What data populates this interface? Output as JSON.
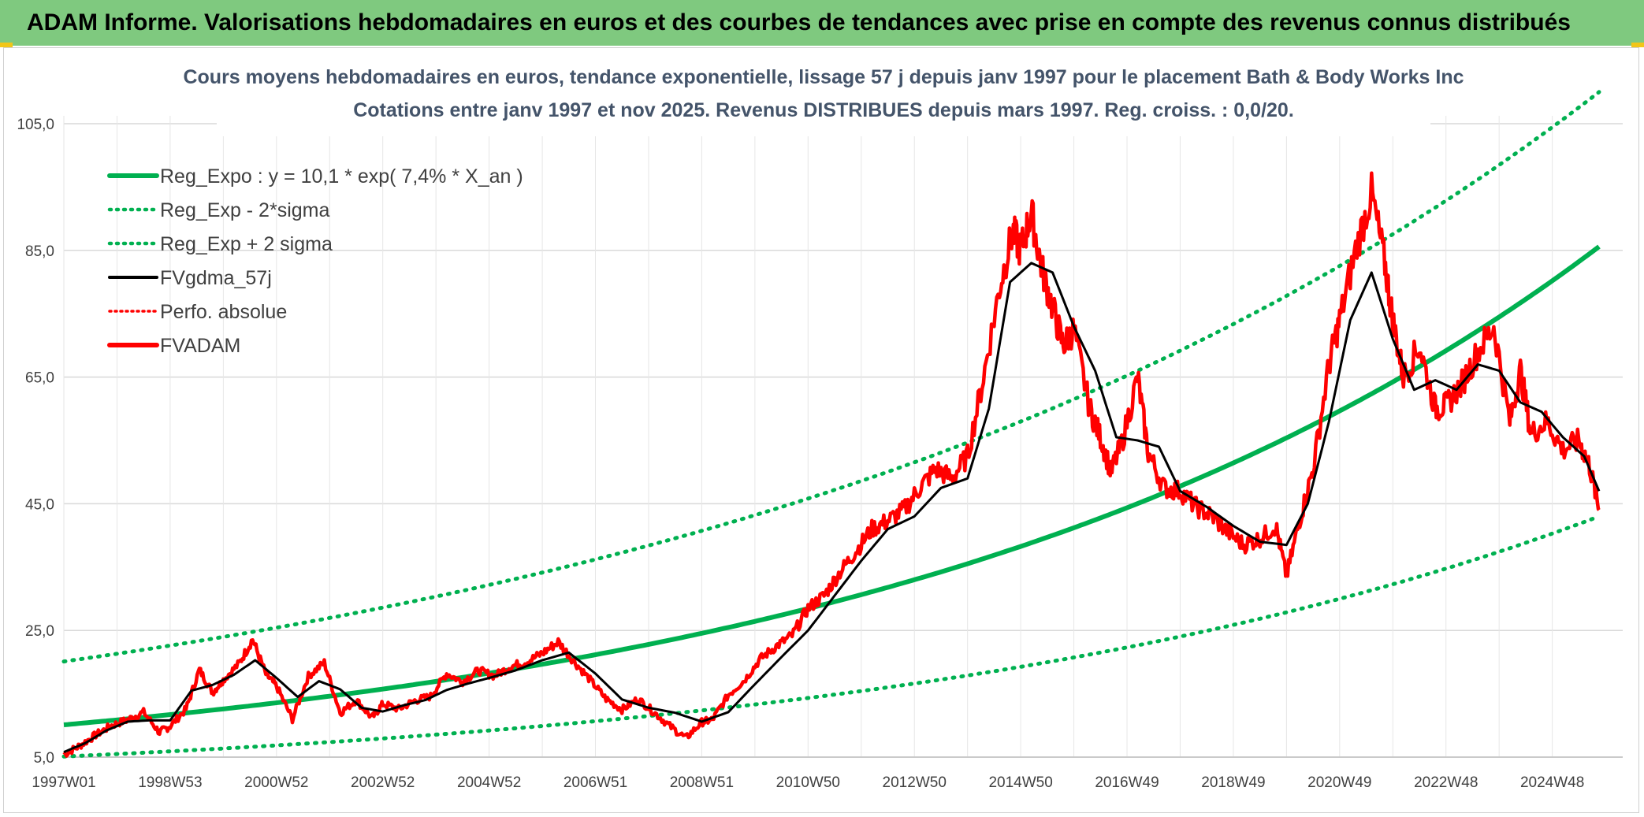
{
  "banner": {
    "title": "ADAM Informe. Valorisations hebdomadaires en euros et des courbes de tendances avec prise en compte des revenus connus distribués"
  },
  "colors": {
    "banner_bg": "#7fc97f",
    "reg_green": "#00b050",
    "fv_red": "#ff0000",
    "gdma_black": "#000000",
    "title_slate": "#44546a",
    "grid": "#d9d9d9"
  },
  "chart_data": {
    "type": "line",
    "title_lines": [
      "Cours moyens hebdomadaires en euros, tendance exponentielle, lissage 57 j depuis janv 1997 pour le placement Bath & Body Works Inc",
      "Cotations entre janv 1997 et nov 2025. Revenus DISTRIBUES depuis mars 1997. Reg. croiss. : 0,0/20."
    ],
    "xlabel": "",
    "ylabel": "",
    "ylim": [
      5,
      105
    ],
    "xlim": [
      1997.0,
      2025.88
    ],
    "y_ticks": [
      "5,0",
      "25,0",
      "45,0",
      "65,0",
      "85,0",
      "105,0"
    ],
    "y_tick_values": [
      5,
      25,
      45,
      65,
      85,
      105
    ],
    "x_ticks": [
      "1997W01",
      "1998W53",
      "2000W52",
      "2002W52",
      "2004W52",
      "2006W51",
      "2008W51",
      "2010W50",
      "2012W50",
      "2014W50",
      "2016W49",
      "2018W49",
      "2020W49",
      "2022W48",
      "2024W48"
    ],
    "x_tick_values": [
      1997,
      1999,
      2001,
      2003,
      2005,
      2007,
      2009,
      2011,
      2013,
      2015,
      2017,
      2019,
      2021,
      2023,
      2025
    ],
    "legend_position": "top-left",
    "legend": [
      {
        "key": "reg",
        "label": "Reg_Expo : y = 10,1 * exp( 7,4% *  X_an )",
        "style": "solid-thick-green"
      },
      {
        "key": "low",
        "label": "Reg_Exp - 2*sigma",
        "style": "dotted-green"
      },
      {
        "key": "high",
        "label": "Reg_Exp + 2 sigma",
        "style": "dotted-green"
      },
      {
        "key": "gdma",
        "label": "FVgdma_57j",
        "style": "solid-black"
      },
      {
        "key": "perf",
        "label": "Perfo. absolue",
        "style": "dotted-red"
      },
      {
        "key": "fv",
        "label": "FVADAM",
        "style": "solid-thick-red"
      }
    ],
    "regression": {
      "formula": "y = 10.1 * exp(0.074 * X_an)",
      "a": 10.1,
      "b": 0.074,
      "upper_start": 20.1,
      "lower_start": 5.1,
      "upper_end": 110.0,
      "lower_end": 43.0
    },
    "series": [
      {
        "name": "FVADAM",
        "x": [
          1997.0,
          1997.3,
          1997.6,
          1997.9,
          1998.2,
          1998.5,
          1998.8,
          1999.0,
          1999.3,
          1999.55,
          1999.8,
          2000.0,
          2000.3,
          2000.55,
          2000.8,
          2001.0,
          2001.3,
          2001.6,
          2001.9,
          2002.2,
          2002.5,
          2002.8,
          2003.0,
          2003.3,
          2003.6,
          2003.9,
          2004.2,
          2004.5,
          2004.8,
          2005.1,
          2005.4,
          2005.7,
          2006.0,
          2006.3,
          2006.6,
          2006.9,
          2007.2,
          2007.5,
          2007.8,
          2008.1,
          2008.4,
          2008.7,
          2009.0,
          2009.2,
          2009.5,
          2009.8,
          2010.1,
          2010.4,
          2010.7,
          2011.0,
          2011.3,
          2011.6,
          2011.9,
          2012.2,
          2012.5,
          2012.8,
          2013.1,
          2013.4,
          2013.7,
          2014.0,
          2014.3,
          2014.6,
          2014.85,
          2015.0,
          2015.2,
          2015.4,
          2015.6,
          2015.8,
          2016.0,
          2016.3,
          2016.5,
          2016.7,
          2016.9,
          2017.2,
          2017.4,
          2017.7,
          2018.0,
          2018.3,
          2018.6,
          2018.9,
          2019.2,
          2019.5,
          2019.8,
          2020.0,
          2020.25,
          2020.5,
          2020.8,
          2021.0,
          2021.3,
          2021.6,
          2021.85,
          2022.0,
          2022.2,
          2022.5,
          2022.8,
          2023.0,
          2023.3,
          2023.6,
          2023.9,
          2024.2,
          2024.4,
          2024.6,
          2024.9,
          2025.2,
          2025.5,
          2025.7,
          2025.88
        ],
        "values": [
          5.4,
          6.8,
          8.5,
          10.0,
          10.9,
          12.1,
          8.9,
          9.9,
          12.6,
          18.8,
          15.2,
          17.2,
          19.8,
          23.6,
          18.1,
          16.2,
          11.0,
          17.8,
          19.9,
          12.0,
          14.0,
          11.2,
          13.4,
          12.6,
          13.9,
          14.6,
          18.2,
          16.9,
          18.7,
          17.8,
          19.3,
          20.0,
          21.4,
          23.2,
          20.1,
          17.2,
          14.2,
          12.5,
          14.2,
          12.1,
          9.9,
          8.0,
          10.5,
          10.9,
          14.8,
          17.1,
          20.5,
          22.5,
          24.2,
          28.5,
          30.5,
          34.2,
          37.5,
          41.0,
          42.3,
          44.0,
          47.5,
          50.5,
          49.0,
          52.5,
          65.0,
          79.0,
          88.0,
          85.0,
          91.0,
          82.0,
          76.0,
          70.0,
          72.5,
          60.0,
          55.5,
          50.0,
          54.5,
          65.0,
          53.0,
          47.5,
          47.0,
          44.5,
          43.0,
          40.5,
          38.5,
          39.5,
          41.5,
          33.5,
          42.5,
          50.5,
          67.0,
          74.0,
          85.0,
          94.0,
          83.0,
          74.0,
          65.0,
          70.0,
          60.0,
          60.5,
          64.0,
          69.0,
          73.0,
          58.0,
          66.0,
          56.0,
          58.0,
          53.5,
          55.0,
          51.0,
          44.0
        ]
      },
      {
        "name": "FVgdma_57j",
        "x": [
          1997.0,
          1997.4,
          1997.8,
          1998.2,
          1998.6,
          1999.0,
          1999.4,
          1999.8,
          2000.2,
          2000.6,
          2001.0,
          2001.4,
          2001.8,
          2002.2,
          2002.6,
          2003.0,
          2003.4,
          2003.8,
          2004.2,
          2004.6,
          2005.0,
          2005.5,
          2006.0,
          2006.5,
          2007.0,
          2007.5,
          2008.0,
          2008.5,
          2009.0,
          2009.5,
          2010.0,
          2010.5,
          2011.0,
          2011.5,
          2012.0,
          2012.5,
          2013.0,
          2013.5,
          2014.0,
          2014.4,
          2014.8,
          2015.2,
          2015.6,
          2016.0,
          2016.4,
          2016.8,
          2017.2,
          2017.6,
          2018.0,
          2018.5,
          2019.0,
          2019.5,
          2020.0,
          2020.4,
          2020.8,
          2021.2,
          2021.6,
          2022.0,
          2022.4,
          2022.8,
          2023.2,
          2023.6,
          2024.0,
          2024.4,
          2024.8,
          2025.2,
          2025.6,
          2025.88
        ],
        "values": [
          5.8,
          7.2,
          9.2,
          10.6,
          10.8,
          10.8,
          15.5,
          16.4,
          18.0,
          20.3,
          17.5,
          14.5,
          17.0,
          15.7,
          12.8,
          12.2,
          13.2,
          14.0,
          15.6,
          16.6,
          17.5,
          18.7,
          20.3,
          21.5,
          18.2,
          14.1,
          12.8,
          12.0,
          10.6,
          12.1,
          16.5,
          20.8,
          25.0,
          30.5,
          36.0,
          41.0,
          43.0,
          47.5,
          49.0,
          60.0,
          80.0,
          83.0,
          81.5,
          73.0,
          66.0,
          55.5,
          55.0,
          54.0,
          47.0,
          44.5,
          41.5,
          39.0,
          38.5,
          45.0,
          58.0,
          74.0,
          81.5,
          71.0,
          63.0,
          64.5,
          63.0,
          67.0,
          66.0,
          61.0,
          59.5,
          55.5,
          52.5,
          47.0
        ]
      }
    ]
  }
}
